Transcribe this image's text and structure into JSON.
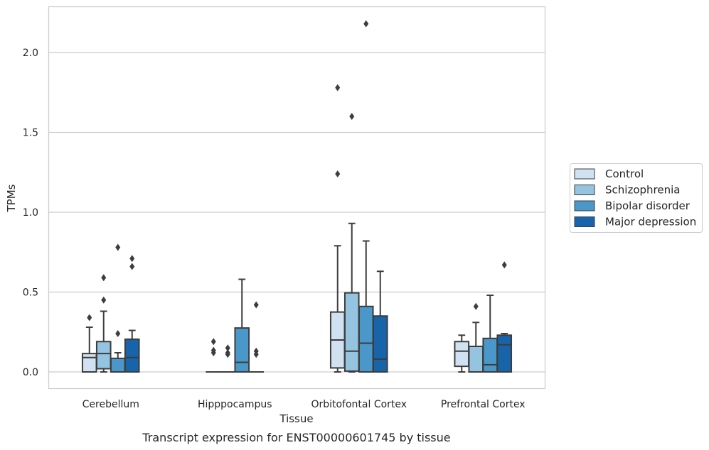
{
  "chart_data": {
    "type": "boxplot",
    "caption": "Transcript expression for ENST00000601745 by tissue",
    "xlabel": "Tissue",
    "ylabel": "TPMs",
    "ylim": [
      -0.105,
      2.3
    ],
    "yticks": [
      0.0,
      0.5,
      1.0,
      1.5,
      2.0
    ],
    "ytick_labels": [
      "0.0",
      "0.5",
      "1.0",
      "1.5",
      "2.0"
    ],
    "grid": "horizontal",
    "legend_position": "right",
    "categories": [
      "Cerebellum",
      "Hipppocampus",
      "Orbitofontal Cortex",
      "Prefrontal Cortex"
    ],
    "series": [
      {
        "name": "Control",
        "color": "#d0e1f2",
        "boxes": [
          {
            "whislo": 0.0,
            "q1": 0.0,
            "med": 0.09,
            "q3": 0.115,
            "whishi": 0.28,
            "fliers": [
              0.34
            ]
          },
          {
            "whislo": 0.0,
            "q1": 0.0,
            "med": 0.0,
            "q3": 0.0,
            "whishi": 0.0,
            "fliers": [
              0.19,
              0.135,
              0.12
            ]
          },
          {
            "whislo": 0.0,
            "q1": 0.025,
            "med": 0.2,
            "q3": 0.375,
            "whishi": 0.79,
            "fliers": [
              1.24,
              1.78
            ]
          },
          {
            "whislo": 0.0,
            "q1": 0.035,
            "med": 0.13,
            "q3": 0.19,
            "whishi": 0.23,
            "fliers": []
          }
        ]
      },
      {
        "name": "Schizophrenia",
        "color": "#94c4df",
        "boxes": [
          {
            "whislo": 0.0,
            "q1": 0.02,
            "med": 0.115,
            "q3": 0.19,
            "whishi": 0.38,
            "fliers": [
              0.45,
              0.59
            ]
          },
          {
            "whislo": 0.0,
            "q1": 0.0,
            "med": 0.0,
            "q3": 0.0,
            "whishi": 0.0,
            "fliers": [
              0.15,
              0.12,
              0.11
            ]
          },
          {
            "whislo": 0.0,
            "q1": 0.005,
            "med": 0.13,
            "q3": 0.495,
            "whishi": 0.93,
            "fliers": [
              1.6
            ]
          },
          {
            "whislo": 0.0,
            "q1": 0.0,
            "med": 0.0,
            "q3": 0.16,
            "whishi": 0.31,
            "fliers": [
              0.41
            ]
          }
        ]
      },
      {
        "name": "Bipolar disorder",
        "color": "#4a98c9",
        "boxes": [
          {
            "whislo": 0.0,
            "q1": 0.0,
            "med": 0.0,
            "q3": 0.085,
            "whishi": 0.12,
            "fliers": [
              0.24,
              0.78
            ]
          },
          {
            "whislo": 0.0,
            "q1": 0.0,
            "med": 0.06,
            "q3": 0.275,
            "whishi": 0.58,
            "fliers": []
          },
          {
            "whislo": 0.0,
            "q1": 0.0,
            "med": 0.18,
            "q3": 0.41,
            "whishi": 0.82,
            "fliers": [
              2.18
            ]
          },
          {
            "whislo": 0.0,
            "q1": 0.0,
            "med": 0.045,
            "q3": 0.21,
            "whishi": 0.48,
            "fliers": []
          }
        ]
      },
      {
        "name": "Major depression",
        "color": "#1764ab",
        "boxes": [
          {
            "whislo": 0.0,
            "q1": 0.0,
            "med": 0.09,
            "q3": 0.205,
            "whishi": 0.26,
            "fliers": [
              0.66,
              0.71
            ]
          },
          {
            "whislo": 0.0,
            "q1": 0.0,
            "med": 0.0,
            "q3": 0.0,
            "whishi": 0.0,
            "fliers": [
              0.42,
              0.13,
              0.11
            ]
          },
          {
            "whislo": 0.0,
            "q1": 0.0,
            "med": 0.08,
            "q3": 0.35,
            "whishi": 0.63,
            "fliers": []
          },
          {
            "whislo": 0.0,
            "q1": 0.0,
            "med": 0.17,
            "q3": 0.23,
            "whishi": 0.24,
            "fliers": [
              0.67
            ]
          }
        ]
      }
    ]
  }
}
